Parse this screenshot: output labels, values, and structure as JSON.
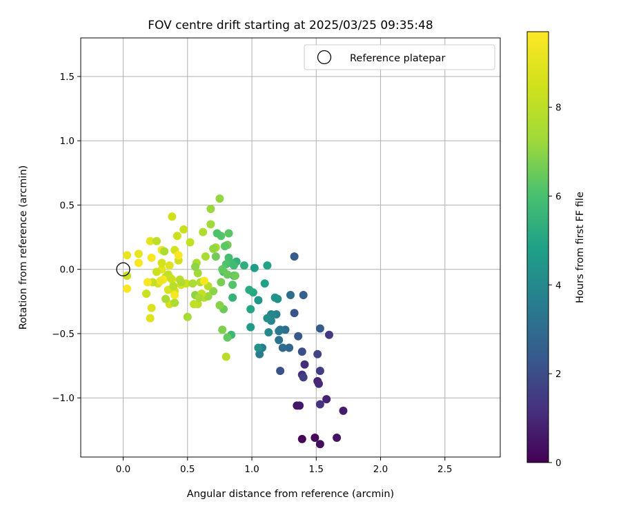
{
  "chart_data": {
    "type": "scatter",
    "title": "FOV centre drift starting at 2025/03/25 09:35:48",
    "xlabel": "Angular distance from reference (arcmin)",
    "ylabel": "Rotation from reference (arcmin)",
    "xlim": [
      -0.33,
      2.93
    ],
    "ylim": [
      -1.46,
      1.8
    ],
    "xticks": [
      0.0,
      0.5,
      1.0,
      1.5,
      2.0,
      2.5
    ],
    "xtick_labels": [
      "0.0",
      "0.5",
      "1.0",
      "1.5",
      "2.0",
      "2.5"
    ],
    "yticks": [
      -1.0,
      -0.5,
      0.0,
      0.5,
      1.0,
      1.5
    ],
    "ytick_labels": [
      "−1.0",
      "−0.5",
      "0.0",
      "0.5",
      "1.0",
      "1.5"
    ],
    "grid": true,
    "legend": {
      "position": "top-right",
      "entries": [
        "Reference platepar"
      ]
    },
    "reference_point": {
      "x": 0.0,
      "y": 0.0,
      "marker": "open-circle",
      "label": "Reference platepar"
    },
    "colorbar": {
      "label": "Hours from first FF file",
      "colormap": "viridis",
      "range": [
        0,
        9.7
      ],
      "ticks": [
        0,
        2,
        4,
        6,
        8
      ],
      "tick_labels": [
        "0",
        "2",
        "4",
        "6",
        "8"
      ]
    },
    "points": [
      {
        "x": 1.39,
        "y": -1.32,
        "c": 0.1
      },
      {
        "x": 1.49,
        "y": -1.31,
        "c": 0.2
      },
      {
        "x": 1.53,
        "y": -1.36,
        "c": 0.3
      },
      {
        "x": 1.66,
        "y": -1.31,
        "c": 0.4
      },
      {
        "x": 1.35,
        "y": -1.06,
        "c": 0.5
      },
      {
        "x": 1.37,
        "y": -1.06,
        "c": 0.6
      },
      {
        "x": 1.71,
        "y": -1.1,
        "c": 0.7
      },
      {
        "x": 1.58,
        "y": -1.01,
        "c": 0.8
      },
      {
        "x": 1.51,
        "y": -0.87,
        "c": 0.9
      },
      {
        "x": 1.52,
        "y": -0.89,
        "c": 1.0
      },
      {
        "x": 1.41,
        "y": -0.74,
        "c": 1.1
      },
      {
        "x": 1.39,
        "y": -0.82,
        "c": 1.2
      },
      {
        "x": 1.53,
        "y": -1.05,
        "c": 1.3
      },
      {
        "x": 1.6,
        "y": -0.51,
        "c": 1.4
      },
      {
        "x": 1.53,
        "y": -0.79,
        "c": 1.5
      },
      {
        "x": 1.4,
        "y": -0.84,
        "c": 1.6
      },
      {
        "x": 1.51,
        "y": -0.66,
        "c": 1.8
      },
      {
        "x": 1.39,
        "y": -0.64,
        "c": 2.0
      },
      {
        "x": 1.22,
        "y": -0.79,
        "c": 2.1
      },
      {
        "x": 1.33,
        "y": -0.34,
        "c": 2.2
      },
      {
        "x": 1.36,
        "y": -0.52,
        "c": 2.3
      },
      {
        "x": 1.53,
        "y": -0.46,
        "c": 2.4
      },
      {
        "x": 1.33,
        "y": 0.1,
        "c": 2.5
      },
      {
        "x": 1.4,
        "y": -0.2,
        "c": 2.6
      },
      {
        "x": 1.29,
        "y": -0.61,
        "c": 2.8
      },
      {
        "x": 1.24,
        "y": -0.61,
        "c": 2.9
      },
      {
        "x": 1.3,
        "y": -0.2,
        "c": 3.0
      },
      {
        "x": 1.26,
        "y": -0.47,
        "c": 3.1
      },
      {
        "x": 1.21,
        "y": -0.55,
        "c": 3.2
      },
      {
        "x": 1.22,
        "y": -0.47,
        "c": 3.3
      },
      {
        "x": 1.21,
        "y": -0.48,
        "c": 3.4
      },
      {
        "x": 1.06,
        "y": -0.66,
        "c": 3.5
      },
      {
        "x": 1.08,
        "y": -0.61,
        "c": 3.6
      },
      {
        "x": 1.19,
        "y": -0.35,
        "c": 3.7
      },
      {
        "x": 1.15,
        "y": -0.35,
        "c": 3.8
      },
      {
        "x": 1.15,
        "y": -0.4,
        "c": 3.9
      },
      {
        "x": 1.13,
        "y": -0.49,
        "c": 4.0
      },
      {
        "x": 1.12,
        "y": -0.38,
        "c": 4.1
      },
      {
        "x": 1.2,
        "y": -0.23,
        "c": 4.2
      },
      {
        "x": 1.05,
        "y": -0.61,
        "c": 4.3
      },
      {
        "x": 1.18,
        "y": -0.22,
        "c": 4.4
      },
      {
        "x": 1.05,
        "y": -0.24,
        "c": 4.5
      },
      {
        "x": 0.99,
        "y": -0.45,
        "c": 4.6
      },
      {
        "x": 1.02,
        "y": 0.01,
        "c": 4.7
      },
      {
        "x": 1.1,
        "y": -0.11,
        "c": 4.8
      },
      {
        "x": 1.12,
        "y": 0.03,
        "c": 4.9
      },
      {
        "x": 0.99,
        "y": -0.31,
        "c": 5.0
      },
      {
        "x": 1.01,
        "y": -0.18,
        "c": 5.1
      },
      {
        "x": 0.98,
        "y": -0.16,
        "c": 5.2
      },
      {
        "x": 0.94,
        "y": 0.03,
        "c": 5.3
      },
      {
        "x": 0.88,
        "y": 0.06,
        "c": 5.4
      },
      {
        "x": 0.85,
        "y": -0.22,
        "c": 5.5
      },
      {
        "x": 0.86,
        "y": -0.05,
        "c": 5.6
      },
      {
        "x": 0.84,
        "y": -0.51,
        "c": 5.7
      },
      {
        "x": 0.84,
        "y": 0.05,
        "c": 5.8
      },
      {
        "x": 0.82,
        "y": 0.09,
        "c": 5.9
      },
      {
        "x": 0.78,
        "y": -0.02,
        "c": 6.0
      },
      {
        "x": 0.8,
        "y": 0.04,
        "c": 6.1
      },
      {
        "x": 0.76,
        "y": 0.26,
        "c": 6.2
      },
      {
        "x": 0.82,
        "y": 0.28,
        "c": 6.3
      },
      {
        "x": 0.81,
        "y": -0.53,
        "c": 6.4
      },
      {
        "x": 0.78,
        "y": -0.31,
        "c": 6.5
      },
      {
        "x": 0.81,
        "y": 0.19,
        "c": 6.6
      },
      {
        "x": 0.76,
        "y": -0.1,
        "c": 6.7
      },
      {
        "x": 0.77,
        "y": -0.47,
        "c": 6.8
      },
      {
        "x": 0.75,
        "y": -0.28,
        "c": 6.9
      },
      {
        "x": 0.7,
        "y": -0.17,
        "c": 7.0
      },
      {
        "x": 0.75,
        "y": 0.55,
        "c": 7.1
      },
      {
        "x": 0.68,
        "y": 0.47,
        "c": 7.2
      },
      {
        "x": 0.68,
        "y": 0.35,
        "c": 7.3
      },
      {
        "x": 0.72,
        "y": 0.17,
        "c": 7.4
      },
      {
        "x": 0.64,
        "y": 0.1,
        "c": 7.5
      },
      {
        "x": 0.57,
        "y": 0.05,
        "c": 7.6
      },
      {
        "x": 0.62,
        "y": 0.29,
        "c": 7.7
      },
      {
        "x": 0.66,
        "y": -0.13,
        "c": 7.8
      },
      {
        "x": 0.8,
        "y": -0.68,
        "c": 7.9
      },
      {
        "x": 0.58,
        "y": -0.27,
        "c": 8.0
      },
      {
        "x": 0.55,
        "y": -0.27,
        "c": 8.1
      },
      {
        "x": 0.52,
        "y": 0.21,
        "c": 8.2
      },
      {
        "x": 0.47,
        "y": 0.31,
        "c": 8.3
      },
      {
        "x": 0.42,
        "y": 0.26,
        "c": 8.4
      },
      {
        "x": 0.38,
        "y": 0.41,
        "c": 8.5
      },
      {
        "x": 0.36,
        "y": -0.27,
        "c": 8.6
      },
      {
        "x": 0.35,
        "y": -0.16,
        "c": 8.7
      },
      {
        "x": 0.22,
        "y": -0.3,
        "c": 8.8
      },
      {
        "x": 0.21,
        "y": -0.38,
        "c": 8.9
      },
      {
        "x": 0.21,
        "y": 0.22,
        "c": 9.0
      },
      {
        "x": 0.12,
        "y": 0.12,
        "c": 9.1
      },
      {
        "x": 0.03,
        "y": 0.11,
        "c": 9.2
      },
      {
        "x": 0.03,
        "y": -0.05,
        "c": 8.3
      },
      {
        "x": 0.33,
        "y": -0.06,
        "c": 8.4
      },
      {
        "x": 0.4,
        "y": 0.15,
        "c": 8.6
      },
      {
        "x": 0.45,
        "y": -0.12,
        "c": 8.7
      },
      {
        "x": 0.49,
        "y": -0.11,
        "c": 8.4
      },
      {
        "x": 0.38,
        "y": -0.08,
        "c": 8.8
      },
      {
        "x": 0.33,
        "y": -0.23,
        "c": 7.5
      },
      {
        "x": 0.4,
        "y": -0.26,
        "c": 7.6
      },
      {
        "x": 0.5,
        "y": -0.37,
        "c": 7.4
      },
      {
        "x": 0.56,
        "y": -0.2,
        "c": 7.0
      },
      {
        "x": 0.6,
        "y": -0.1,
        "c": 7.8
      },
      {
        "x": 0.58,
        "y": -0.03,
        "c": 7.3
      },
      {
        "x": 0.63,
        "y": -0.22,
        "c": 7.9
      },
      {
        "x": 0.66,
        "y": -0.21,
        "c": 7.2
      },
      {
        "x": 0.54,
        "y": -0.11,
        "c": 7.6
      },
      {
        "x": 0.56,
        "y": 0.02,
        "c": 7.0
      },
      {
        "x": 0.61,
        "y": -0.19,
        "c": 8.2
      },
      {
        "x": 0.43,
        "y": 0.07,
        "c": 8.5
      },
      {
        "x": 0.36,
        "y": 0.03,
        "c": 8.9
      },
      {
        "x": 0.3,
        "y": 0.0,
        "c": 9.0
      },
      {
        "x": 0.26,
        "y": 0.22,
        "c": 8.0
      },
      {
        "x": 0.3,
        "y": 0.15,
        "c": 9.4
      },
      {
        "x": 0.4,
        "y": -0.17,
        "c": 8.5
      },
      {
        "x": 0.18,
        "y": -0.19,
        "c": 8.4
      },
      {
        "x": 0.27,
        "y": -0.11,
        "c": 8.7
      },
      {
        "x": 0.23,
        "y": -0.1,
        "c": 8.2
      },
      {
        "x": 0.39,
        "y": -0.13,
        "c": 7.9
      },
      {
        "x": 0.35,
        "y": -0.04,
        "c": 8.1
      },
      {
        "x": 0.19,
        "y": -0.1,
        "c": 9.5
      },
      {
        "x": 0.12,
        "y": 0.05,
        "c": 9.6
      },
      {
        "x": 0.03,
        "y": -0.15,
        "c": 9.6
      },
      {
        "x": 0.22,
        "y": 0.09,
        "c": 9.6
      },
      {
        "x": 0.31,
        "y": -0.08,
        "c": 9.6
      },
      {
        "x": 0.4,
        "y": -0.2,
        "c": 9.5
      },
      {
        "x": 0.63,
        "y": -0.09,
        "c": 9.6
      },
      {
        "x": 0.43,
        "y": 0.11,
        "c": 9.6
      },
      {
        "x": 0.29,
        "y": -0.09,
        "c": 9.3
      },
      {
        "x": 0.44,
        "y": -0.08,
        "c": 8.0
      },
      {
        "x": 0.45,
        "y": -0.1,
        "c": 7.7
      },
      {
        "x": 0.59,
        "y": -0.22,
        "c": 7.5
      },
      {
        "x": 0.3,
        "y": 0.05,
        "c": 8.6
      },
      {
        "x": 0.32,
        "y": 0.14,
        "c": 7.6
      },
      {
        "x": 0.37,
        "y": -0.07,
        "c": 8.3
      },
      {
        "x": 0.26,
        "y": -0.02,
        "c": 8.4
      },
      {
        "x": 0.72,
        "y": 0.1,
        "c": 6.6
      },
      {
        "x": 0.7,
        "y": 0.16,
        "c": 7.1
      },
      {
        "x": 0.77,
        "y": 0.0,
        "c": 6.4
      },
      {
        "x": 0.79,
        "y": 0.18,
        "c": 6.3
      },
      {
        "x": 0.73,
        "y": 0.28,
        "c": 6.1
      },
      {
        "x": 0.87,
        "y": -0.05,
        "c": 6.6
      },
      {
        "x": 0.81,
        "y": -0.04,
        "c": 6.5
      },
      {
        "x": 0.85,
        "y": -0.12,
        "c": 6.2
      },
      {
        "x": 0.86,
        "y": 0.03,
        "c": 5.8
      }
    ]
  }
}
